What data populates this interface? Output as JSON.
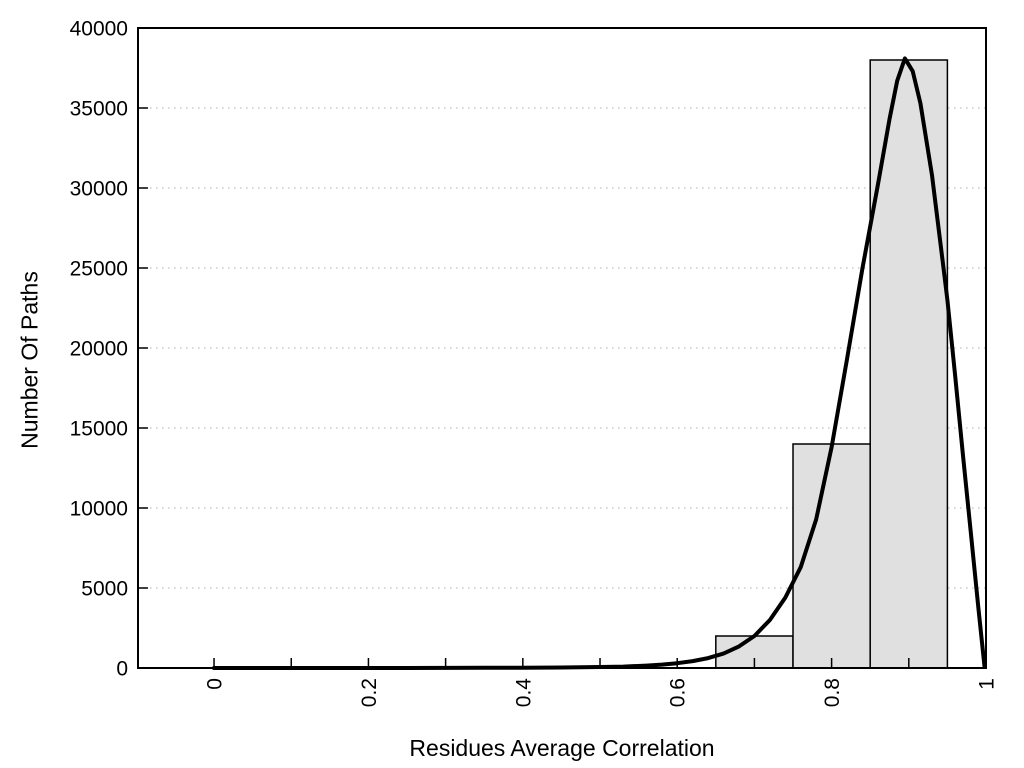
{
  "chart_data": {
    "type": "bar",
    "subtype": "histogram_with_density_curve",
    "title": "",
    "xlabel": "Residues Average Correlation",
    "ylabel": "Number Of Paths",
    "xlim": [
      -0.0985,
      1.0
    ],
    "ylim": [
      0,
      40000
    ],
    "grid": "horizontal-dotted",
    "grid_color": "#bfbfbf",
    "legend": "none",
    "x_ticks_minor_step": 0.1,
    "x_ticks_labeled": [
      0,
      0.2,
      0.4,
      0.6,
      0.8,
      1
    ],
    "x_tick_labels": [
      "0",
      "0.2",
      "0.4",
      "0.6",
      "0.8",
      "1"
    ],
    "x_tick_label_rotation_deg": -90,
    "y_ticks": [
      0,
      5000,
      10000,
      15000,
      20000,
      25000,
      30000,
      35000,
      40000
    ],
    "y_tick_labels": [
      "0",
      "5000",
      "10000",
      "15000",
      "20000",
      "25000",
      "30000",
      "35000",
      "40000"
    ],
    "bar_fill": "#e0e0e0",
    "bar_stroke": "#000000",
    "axis_color": "#000000",
    "bars": [
      {
        "x0": 0.65,
        "x1": 0.75,
        "count": 2000
      },
      {
        "x0": 0.75,
        "x1": 0.85,
        "count": 14000
      },
      {
        "x0": 0.85,
        "x1": 0.95,
        "count": 38000
      }
    ],
    "curve": {
      "name": "density-fit-curve",
      "color": "#000000",
      "width": 4,
      "peak": {
        "x": 0.895,
        "value": 38100
      },
      "points": [
        [
          0.0,
          0
        ],
        [
          0.05,
          0
        ],
        [
          0.1,
          0
        ],
        [
          0.15,
          0
        ],
        [
          0.2,
          0
        ],
        [
          0.25,
          0
        ],
        [
          0.3,
          5
        ],
        [
          0.35,
          10
        ],
        [
          0.4,
          15
        ],
        [
          0.45,
          30
        ],
        [
          0.5,
          60
        ],
        [
          0.53,
          90
        ],
        [
          0.56,
          150
        ],
        [
          0.58,
          210
        ],
        [
          0.6,
          300
        ],
        [
          0.62,
          430
        ],
        [
          0.64,
          620
        ],
        [
          0.66,
          900
        ],
        [
          0.68,
          1350
        ],
        [
          0.7,
          2000
        ],
        [
          0.72,
          3000
        ],
        [
          0.74,
          4400
        ],
        [
          0.76,
          6300
        ],
        [
          0.78,
          9300
        ],
        [
          0.8,
          13800
        ],
        [
          0.82,
          19300
        ],
        [
          0.84,
          25000
        ],
        [
          0.86,
          30200
        ],
        [
          0.875,
          34300
        ],
        [
          0.885,
          36700
        ],
        [
          0.895,
          38100
        ],
        [
          0.905,
          37300
        ],
        [
          0.915,
          35300
        ],
        [
          0.93,
          30800
        ],
        [
          0.945,
          25000
        ],
        [
          0.95,
          23000
        ],
        [
          0.96,
          18300
        ],
        [
          0.97,
          13400
        ],
        [
          0.98,
          8600
        ],
        [
          0.99,
          3800
        ],
        [
          0.998,
          100
        ]
      ]
    }
  }
}
